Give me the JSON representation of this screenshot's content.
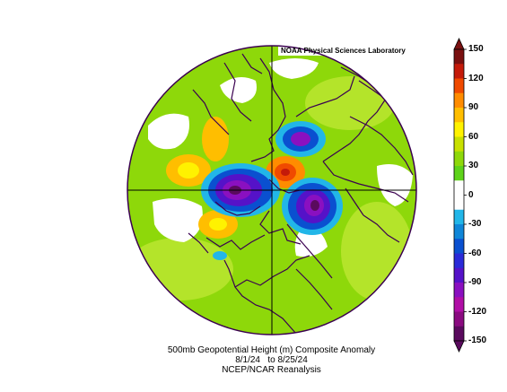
{
  "map": {
    "credit": "NOAA Physical Sciences Laboratory",
    "title": "500mb Geopotential Height (m) Composite Anomaly",
    "date_range": "8/1/24   to 8/25/24",
    "source": "NCEP/NCAR Reanalysis",
    "projection": "north polar stereographic",
    "coastline_color": "#3a0050"
  },
  "colorbar": {
    "ticks": [
      "150",
      "120",
      "90",
      "60",
      "30",
      "0",
      "-30",
      "-60",
      "-90",
      "-120",
      "-150"
    ],
    "colors": [
      "#7a1010",
      "#c41a0a",
      "#f04a00",
      "#ff8c00",
      "#ffbe00",
      "#fff200",
      "#c8e000",
      "#8ed80a",
      "#5ed31a",
      "#ffffff",
      "#ffffff",
      "#22b6e8",
      "#0f86d8",
      "#0a50d0",
      "#2a2ad8",
      "#5512c8",
      "#8a10c0",
      "#b00ea6",
      "#8a0a80",
      "#5a0a5e"
    ]
  },
  "anomalies": [
    {
      "name": "negative-center-canada",
      "value": -150
    },
    {
      "name": "negative-center-siberia",
      "value": -150
    },
    {
      "name": "negative-center-pacific",
      "value": -90
    },
    {
      "name": "positive-center-arctic",
      "value": 120
    },
    {
      "name": "positive-center-atlantic",
      "value": 60
    },
    {
      "name": "positive-center-pacific",
      "value": 60
    }
  ]
}
